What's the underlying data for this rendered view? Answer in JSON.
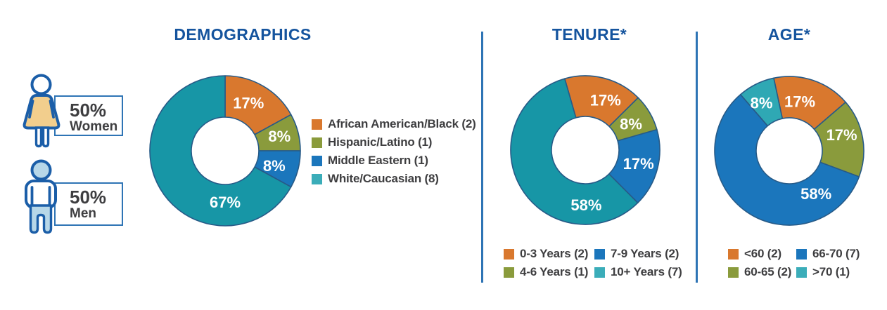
{
  "gender_split": {
    "women": {
      "value_label": "50%",
      "label": "Women"
    },
    "men": {
      "value_label": "50%",
      "label": "Men"
    }
  },
  "chart_data": [
    {
      "type": "pie",
      "variant": "donut",
      "title": "DEMOGRAPHICS",
      "legend_position": "right",
      "slices": [
        {
          "label": "African American/Black (2)",
          "count": 2,
          "percent": 17,
          "percent_label": "17%",
          "color": "#D9782E",
          "swatch_color": "#D9782E"
        },
        {
          "label": "Hispanic/Latino (1)",
          "count": 1,
          "percent": 8,
          "percent_label": "8%",
          "color": "#8A9B3C",
          "swatch_color": "#8A9B3C"
        },
        {
          "label": "Middle Eastern (1)",
          "count": 1,
          "percent": 8,
          "percent_label": "8%",
          "color": "#1B76BC",
          "swatch_color": "#1B76BC"
        },
        {
          "label": "White/Caucasian (8)",
          "count": 8,
          "percent": 67,
          "percent_label": "67%",
          "color": "#1796A6",
          "swatch_color": "#3BADB9"
        }
      ]
    },
    {
      "type": "pie",
      "variant": "donut",
      "title": "TENURE*",
      "legend_position": "bottom",
      "slices": [
        {
          "label": "0-3 Years (2)",
          "count": 2,
          "percent": 17,
          "percent_label": "17%",
          "color": "#D9782E",
          "swatch_color": "#D9782E"
        },
        {
          "label": "4-6 Years (1)",
          "count": 1,
          "percent": 8,
          "percent_label": "8%",
          "color": "#8A9B3C",
          "swatch_color": "#8A9B3C"
        },
        {
          "label": "7-9 Years (2)",
          "count": 2,
          "percent": 17,
          "percent_label": "17%",
          "color": "#1B76BC",
          "swatch_color": "#1B76BC"
        },
        {
          "label": "10+ Years (7)",
          "count": 7,
          "percent": 58,
          "percent_label": "58%",
          "color": "#1796A6",
          "swatch_color": "#3BADB9"
        }
      ]
    },
    {
      "type": "pie",
      "variant": "donut",
      "title": "AGE*",
      "legend_position": "bottom",
      "slices": [
        {
          "label": "<60 (2)",
          "count": 2,
          "percent": 17,
          "percent_label": "17%",
          "color": "#D9782E",
          "swatch_color": "#D9782E"
        },
        {
          "label": "60-65 (2)",
          "count": 2,
          "percent": 17,
          "percent_label": "17%",
          "color": "#8A9B3C",
          "swatch_color": "#8A9B3C"
        },
        {
          "label": "66-70 (7)",
          "count": 7,
          "percent": 58,
          "percent_label": "58%",
          "color": "#1B76BC",
          "swatch_color": "#1B76BC"
        },
        {
          "label": ">70 (1)",
          "count": 1,
          "percent": 8,
          "percent_label": "8%",
          "color": "#2FA8B4",
          "swatch_color": "#3BADB9"
        }
      ]
    }
  ],
  "colors": {
    "title_blue": "#15549E",
    "divider_blue": "#2E74B5",
    "text_dark": "#3E3E40",
    "slice_border": "#275A87",
    "icon_outline": "#1B5EA8",
    "woman_fill": "#F2CE8D",
    "man_fill": "#B7D7E8"
  }
}
